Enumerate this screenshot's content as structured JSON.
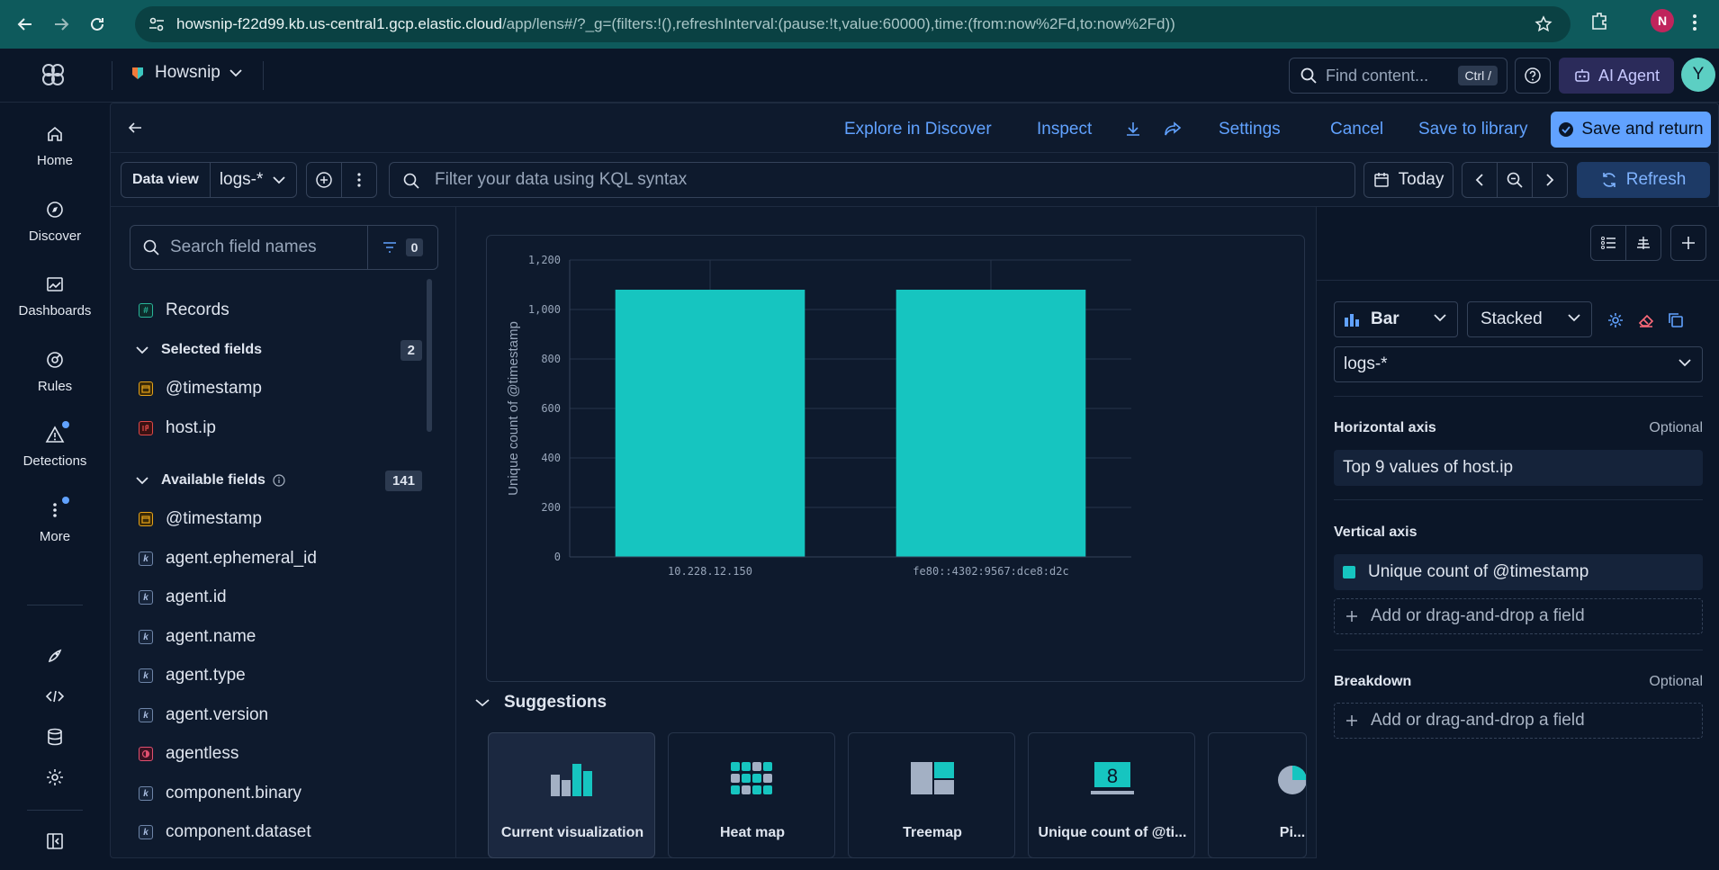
{
  "browser": {
    "url_host": "howsnip-f22d99.kb.us-central1.gcp.elastic.cloud",
    "url_path": "/app/lens#/?_g=(filters:!(),refreshInterval:(pause:!t,value:60000),time:(from:now%2Fd,to:now%2Fd))",
    "profile_initial": "N"
  },
  "header": {
    "space_name": "Howsnip",
    "find_placeholder": "Find content...",
    "find_shortcut": "Ctrl /",
    "ai_agent_label": "AI Agent",
    "user_initial": "Y"
  },
  "nav": {
    "items": [
      {
        "label": "Home",
        "icon": "home-icon"
      },
      {
        "label": "Discover",
        "icon": "compass-icon"
      },
      {
        "label": "Dashboards",
        "icon": "dashboard-icon"
      },
      {
        "label": "Rules",
        "icon": "rules-icon"
      },
      {
        "label": "Detections",
        "icon": "warning-icon"
      },
      {
        "label": "More",
        "icon": "more-icon"
      }
    ]
  },
  "toolbar": {
    "explore": "Explore in Discover",
    "inspect": "Inspect",
    "settings": "Settings",
    "cancel": "Cancel",
    "save_library": "Save to library",
    "save_return": "Save and return"
  },
  "query": {
    "data_view_label": "Data view",
    "data_view_value": "logs-*",
    "kql_placeholder": "Filter your data using KQL syntax",
    "date_label": "Today",
    "refresh_label": "Refresh"
  },
  "fields": {
    "search_placeholder": "Search field names",
    "filter_count": "0",
    "records_label": "Records",
    "selected_title": "Selected fields",
    "selected_count": "2",
    "selected": [
      {
        "name": "@timestamp",
        "type": "date"
      },
      {
        "name": "host.ip",
        "type": "ip"
      }
    ],
    "available_title": "Available fields",
    "available_count": "141",
    "available": [
      {
        "name": "@timestamp",
        "type": "date"
      },
      {
        "name": "agent.ephemeral_id",
        "type": "k"
      },
      {
        "name": "agent.id",
        "type": "k"
      },
      {
        "name": "agent.name",
        "type": "k"
      },
      {
        "name": "agent.type",
        "type": "k"
      },
      {
        "name": "agent.version",
        "type": "k"
      },
      {
        "name": "agentless",
        "type": "bool"
      },
      {
        "name": "component.binary",
        "type": "k"
      },
      {
        "name": "component.dataset",
        "type": "k"
      }
    ]
  },
  "chart_data": {
    "type": "bar",
    "categories": [
      "10.228.12.150",
      "fe80::4302:9567:dce8:d2c"
    ],
    "values": [
      1080,
      1080
    ],
    "ylabel": "Unique count of @timestamp",
    "xlabel": "",
    "ylim": [
      0,
      1200
    ],
    "yticks": [
      "0",
      "200",
      "400",
      "600",
      "800",
      "1,000",
      "1,200"
    ],
    "color": "#16c5c0",
    "grid": true
  },
  "suggestions": {
    "title": "Suggestions",
    "cards": [
      "Current visualization",
      "Heat map",
      "Treemap",
      "Unique count of @ti...",
      "Pi..."
    ],
    "metric_icon_digit": "8"
  },
  "config": {
    "chart_type": "Bar",
    "mode": "Stacked",
    "layer_data_view": "logs-*",
    "horizontal_axis_title": "Horizontal axis",
    "horizontal_axis_value": "Top 9 values of host.ip",
    "vertical_axis_title": "Vertical axis",
    "vertical_axis_value": "Unique count of @timestamp",
    "breakdown_title": "Breakdown",
    "optional_label": "Optional",
    "add_field_label": "Add or drag-and-drop a field",
    "series_color": "#16c5c0"
  }
}
